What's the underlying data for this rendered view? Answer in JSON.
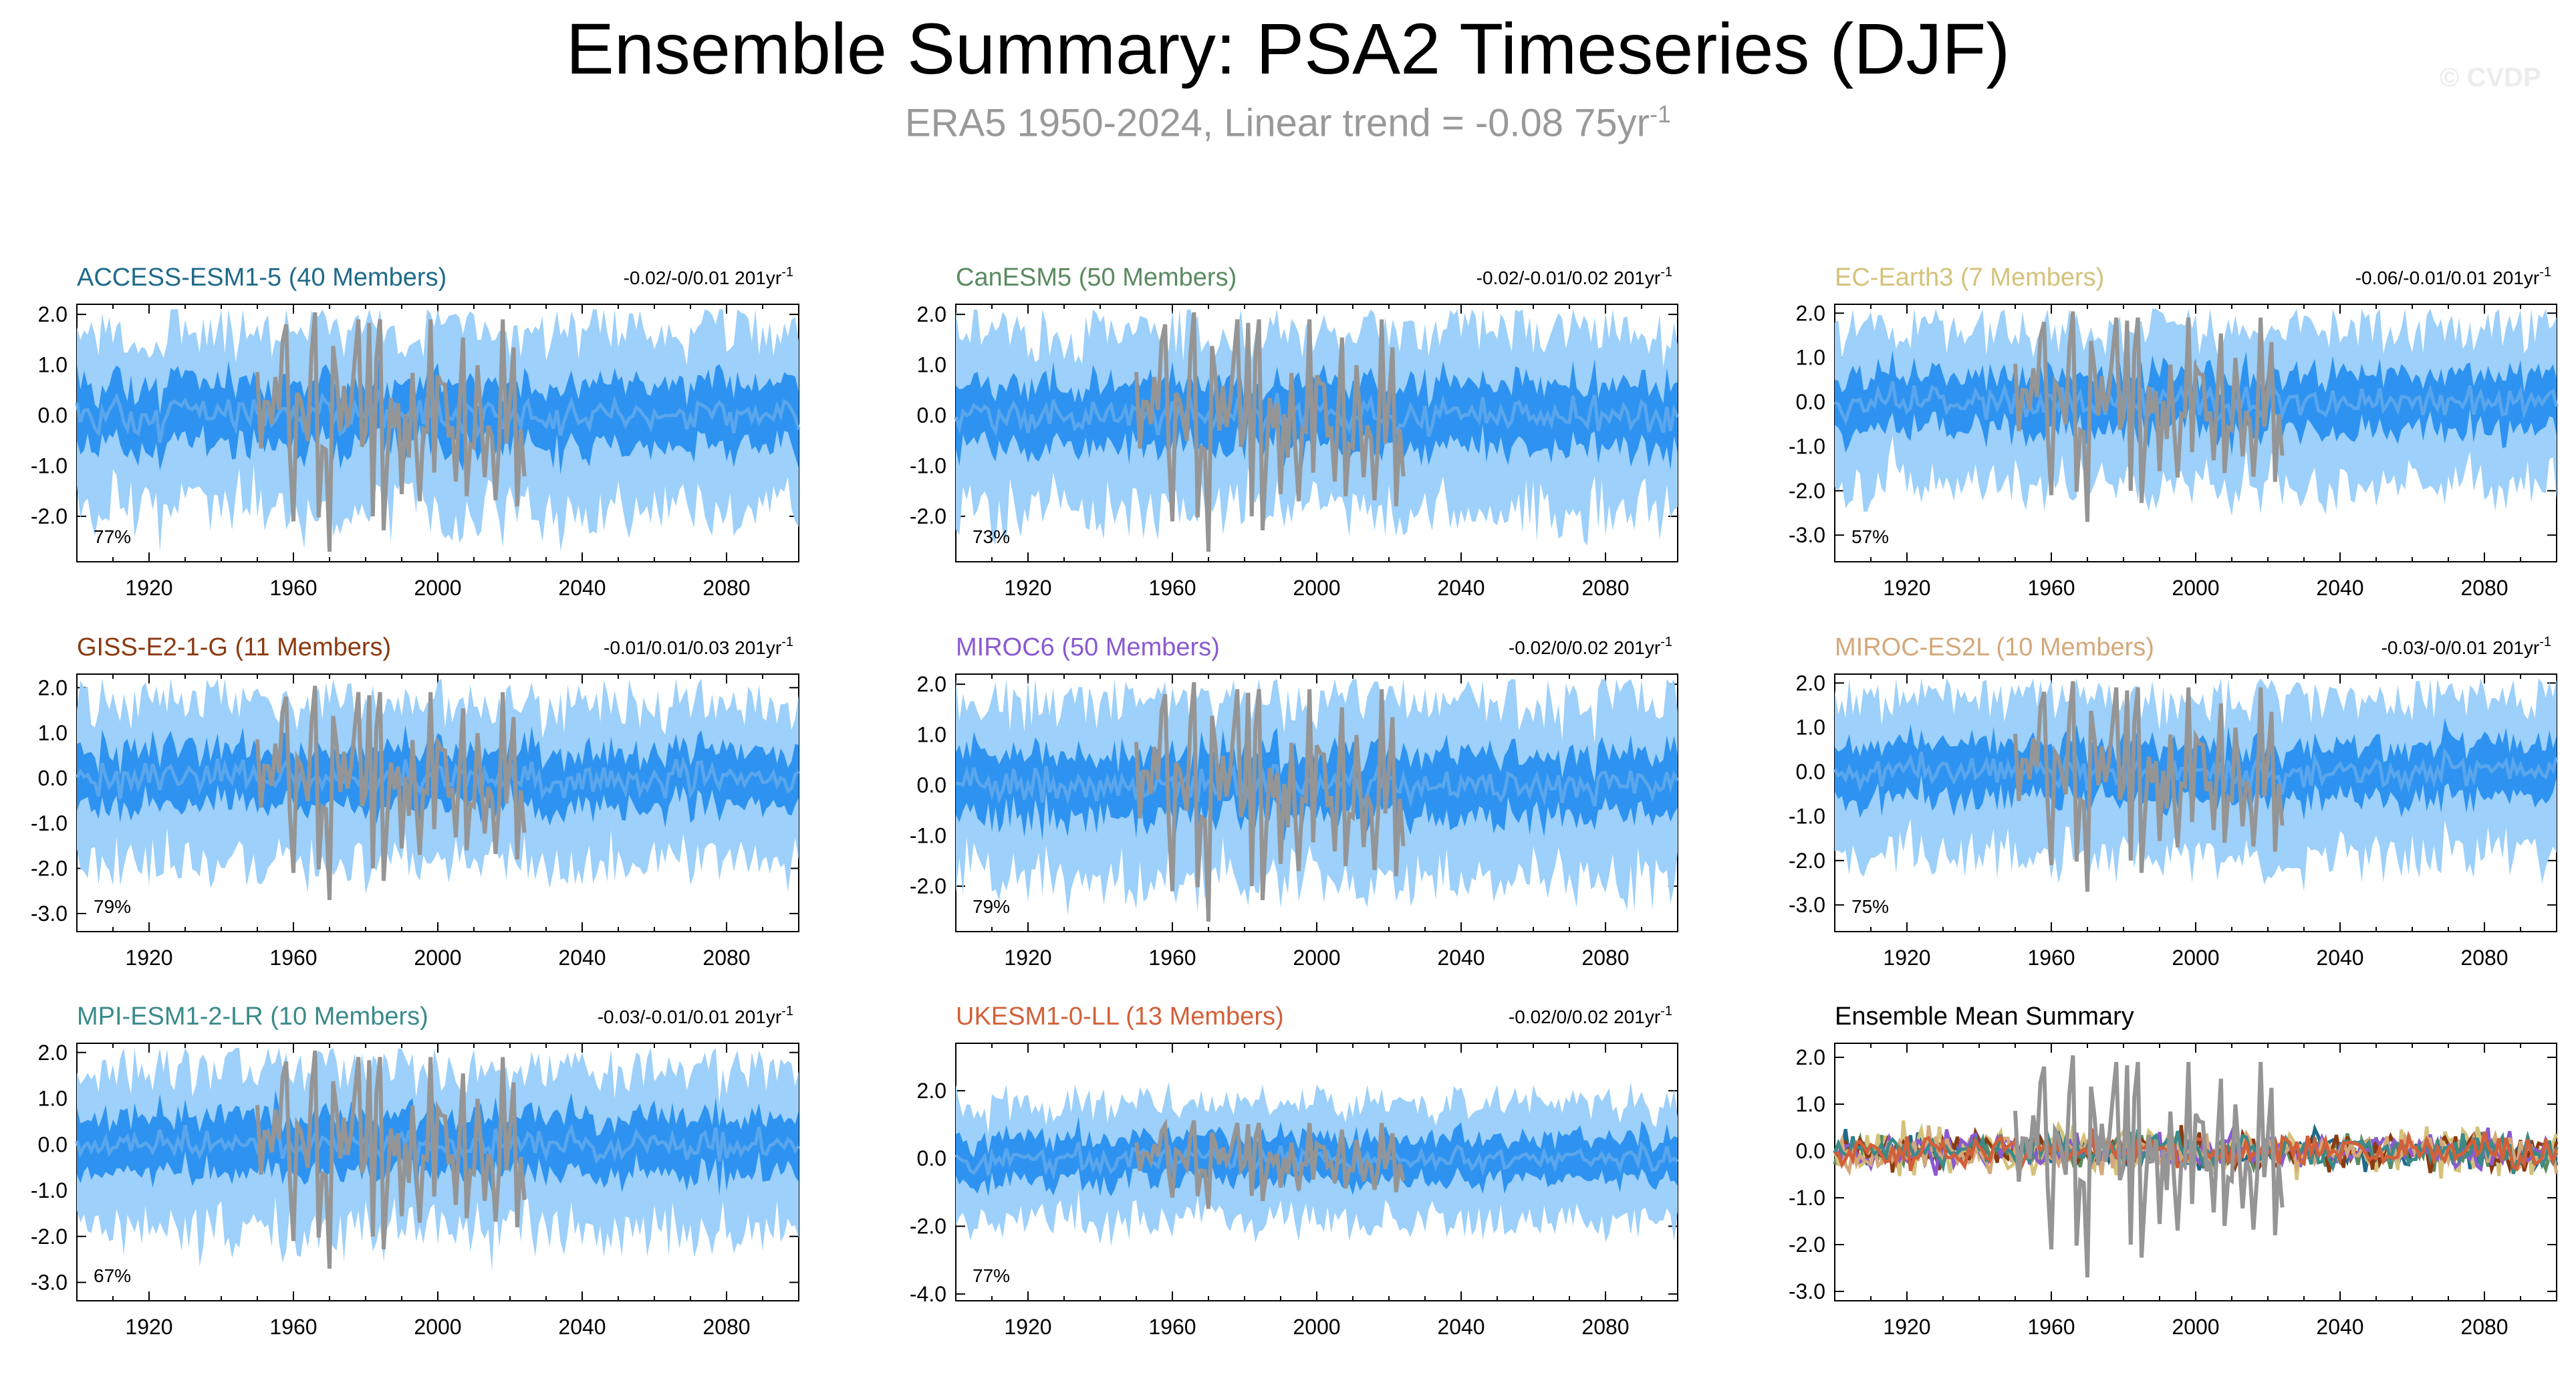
{
  "title": "Ensemble Summary: PSA2 Timeseries (DJF)",
  "subtitle": {
    "text": "ERA5 1950-2024, Linear trend = -0.08 75yr",
    "exponent": "-1"
  },
  "watermark": "© CVDP",
  "colors": {
    "outer_band": "#9dd0fa",
    "inner_band": "#2e93f0",
    "ens_mean": "#5aa6ec",
    "observation": "#959595"
  },
  "chart_data": [
    {
      "type": "area",
      "title": "ACCESS-ESM1-5 (40 Members)",
      "title_color": "#1f6a8a",
      "trend_label": "-0.02/-0/0.01 201yr",
      "trend_exponent": "-1",
      "percent_label": "77%",
      "x_range": [
        1900,
        2100
      ],
      "x_ticks": [
        "1920",
        "1960",
        "2000",
        "2040",
        "2080"
      ],
      "ylim": [
        -2.9,
        2.2
      ],
      "y_ticks": [
        "2.0",
        "1.0",
        "0.0",
        "-1.0",
        "-2.0"
      ],
      "series": [
        "5-95% ensemble range",
        "25-75% ensemble range",
        "ensemble mean",
        "ERA5 observed (1950-2024)"
      ]
    },
    {
      "type": "area",
      "title": "CanESM5 (50 Members)",
      "title_color": "#5a8a60",
      "trend_label": "-0.02/-0.01/0.02 201yr",
      "trend_exponent": "-1",
      "percent_label": "73%",
      "x_range": [
        1900,
        2100
      ],
      "x_ticks": [
        "1920",
        "1960",
        "2000",
        "2040",
        "2080"
      ],
      "ylim": [
        -2.9,
        2.2
      ],
      "y_ticks": [
        "2.0",
        "1.0",
        "0.0",
        "-1.0",
        "-2.0"
      ],
      "series": [
        "5-95% ensemble range",
        "25-75% ensemble range",
        "ensemble mean",
        "ERA5 observed (1950-2024)"
      ]
    },
    {
      "type": "area",
      "title": "EC-Earth3 (7 Members)",
      "title_color": "#d4c27a",
      "trend_label": "-0.06/-0.01/0.01 201yr",
      "trend_exponent": "-1",
      "percent_label": "57%",
      "x_range": [
        1900,
        2100
      ],
      "x_ticks": [
        "1920",
        "1960",
        "2000",
        "2040",
        "2080"
      ],
      "ylim": [
        -3.6,
        2.2
      ],
      "y_ticks": [
        "2.0",
        "1.0",
        "0.0",
        "-1.0",
        "-2.0",
        "-3.0"
      ],
      "series": [
        "5-95% ensemble range",
        "25-75% ensemble range",
        "ensemble mean",
        "ERA5 observed (1950-2024)"
      ]
    },
    {
      "type": "area",
      "title": "GISS-E2-1-G (11 Members)",
      "title_color": "#8a3a10",
      "trend_label": "-0.01/0.01/0.03 201yr",
      "trend_exponent": "-1",
      "percent_label": "79%",
      "x_range": [
        1900,
        2100
      ],
      "x_ticks": [
        "1920",
        "1960",
        "2000",
        "2040",
        "2080"
      ],
      "ylim": [
        -3.4,
        2.3
      ],
      "y_ticks": [
        "2.0",
        "1.0",
        "0.0",
        "-1.0",
        "-2.0",
        "-3.0"
      ],
      "series": [
        "5-95% ensemble range",
        "25-75% ensemble range",
        "ensemble mean",
        "ERA5 observed (1950-2024)"
      ]
    },
    {
      "type": "area",
      "title": "MIROC6 (50 Members)",
      "title_color": "#8a5ad0",
      "trend_label": "-0.02/0/0.02 201yr",
      "trend_exponent": "-1",
      "percent_label": "79%",
      "x_range": [
        1900,
        2100
      ],
      "x_ticks": [
        "1920",
        "1960",
        "2000",
        "2040",
        "2080"
      ],
      "ylim": [
        -2.9,
        2.2
      ],
      "y_ticks": [
        "2.0",
        "1.0",
        "0.0",
        "-1.0",
        "-2.0"
      ],
      "series": [
        "5-95% ensemble range",
        "25-75% ensemble range",
        "ensemble mean",
        "ERA5 observed (1950-2024)"
      ]
    },
    {
      "type": "area",
      "title": "MIROC-ES2L (10 Members)",
      "title_color": "#d4a87a",
      "trend_label": "-0.03/-0/0.01 201yr",
      "trend_exponent": "-1",
      "percent_label": "75%",
      "x_range": [
        1900,
        2100
      ],
      "x_ticks": [
        "1920",
        "1960",
        "2000",
        "2040",
        "2080"
      ],
      "ylim": [
        -3.6,
        2.2
      ],
      "y_ticks": [
        "2.0",
        "1.0",
        "0.0",
        "-1.0",
        "-2.0",
        "-3.0"
      ],
      "series": [
        "5-95% ensemble range",
        "25-75% ensemble range",
        "ensemble mean",
        "ERA5 observed (1950-2024)"
      ]
    },
    {
      "type": "area",
      "title": "MPI-ESM1-2-LR (10 Members)",
      "title_color": "#3a8a8a",
      "trend_label": "-0.03/-0.01/0.01 201yr",
      "trend_exponent": "-1",
      "percent_label": "67%",
      "x_range": [
        1900,
        2100
      ],
      "x_ticks": [
        "1920",
        "1960",
        "2000",
        "2040",
        "2080"
      ],
      "ylim": [
        -3.4,
        2.2
      ],
      "y_ticks": [
        "2.0",
        "1.0",
        "0.0",
        "-1.0",
        "-2.0",
        "-3.0"
      ],
      "series": [
        "5-95% ensemble range",
        "25-75% ensemble range",
        "ensemble mean",
        "ERA5 observed (1950-2024)"
      ]
    },
    {
      "type": "area",
      "title": "UKESM1-0-LL (13 Members)",
      "title_color": "#d2603a",
      "trend_label": "-0.02/0/0.02 201yr",
      "trend_exponent": "-1",
      "percent_label": "77%",
      "x_range": [
        1900,
        2100
      ],
      "x_ticks": [
        "1920",
        "1960",
        "2000",
        "2040",
        "2080"
      ],
      "ylim": [
        -4.2,
        3.4
      ],
      "y_ticks": [
        "2.0",
        "0.0",
        "-2.0",
        "-4.0"
      ],
      "series": [
        "5-95% ensemble range",
        "25-75% ensemble range",
        "ensemble mean",
        "ERA5 observed (1950-2024)"
      ]
    },
    {
      "type": "line",
      "title": "Ensemble Mean Summary",
      "title_color": "#000000",
      "x_range": [
        1900,
        2100
      ],
      "x_ticks": [
        "1920",
        "1960",
        "2000",
        "2040",
        "2080"
      ],
      "ylim": [
        -3.2,
        2.3
      ],
      "y_ticks": [
        "2.0",
        "1.0",
        "0.0",
        "-1.0",
        "-2.0",
        "-3.0"
      ],
      "series_colors": [
        "#1f6a8a",
        "#5a8a60",
        "#d4c27a",
        "#8a3a10",
        "#8a5ad0",
        "#d4a87a",
        "#3a8a8a",
        "#d2603a"
      ]
    }
  ]
}
